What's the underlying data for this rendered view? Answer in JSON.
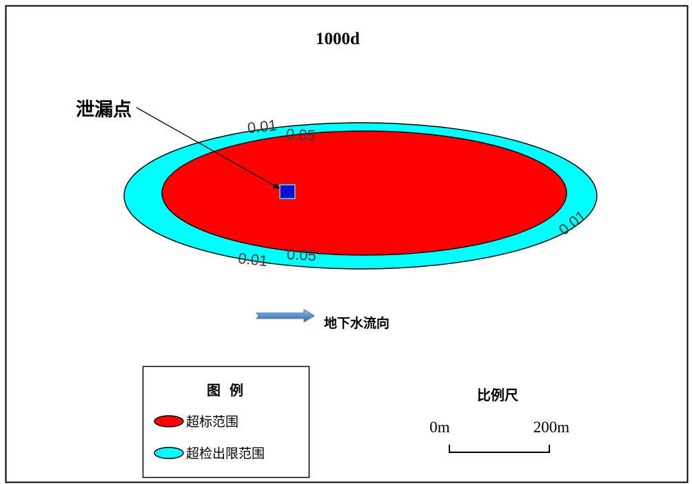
{
  "figure": {
    "title": "1000d"
  },
  "leak_point": {
    "label": "泄漏点",
    "marker_color": "#0a10d8"
  },
  "plume": {
    "contours": [
      {
        "level": "0.01",
        "fill_color": "#00ffff"
      },
      {
        "level": "0.05",
        "fill_color": "#ff0000"
      }
    ]
  },
  "flow_direction": {
    "label": "地下水流向",
    "icon": "right-arrow-icon",
    "arrow_color": "#3d6db0"
  },
  "legend": {
    "title": "图 例",
    "items": [
      {
        "label": "超标范围",
        "color": "#ff0000"
      },
      {
        "label": "超检出限范围",
        "color": "#00ffff"
      }
    ]
  },
  "scale_bar": {
    "title": "比例尺",
    "start_label": "0m",
    "end_label": "200m"
  }
}
